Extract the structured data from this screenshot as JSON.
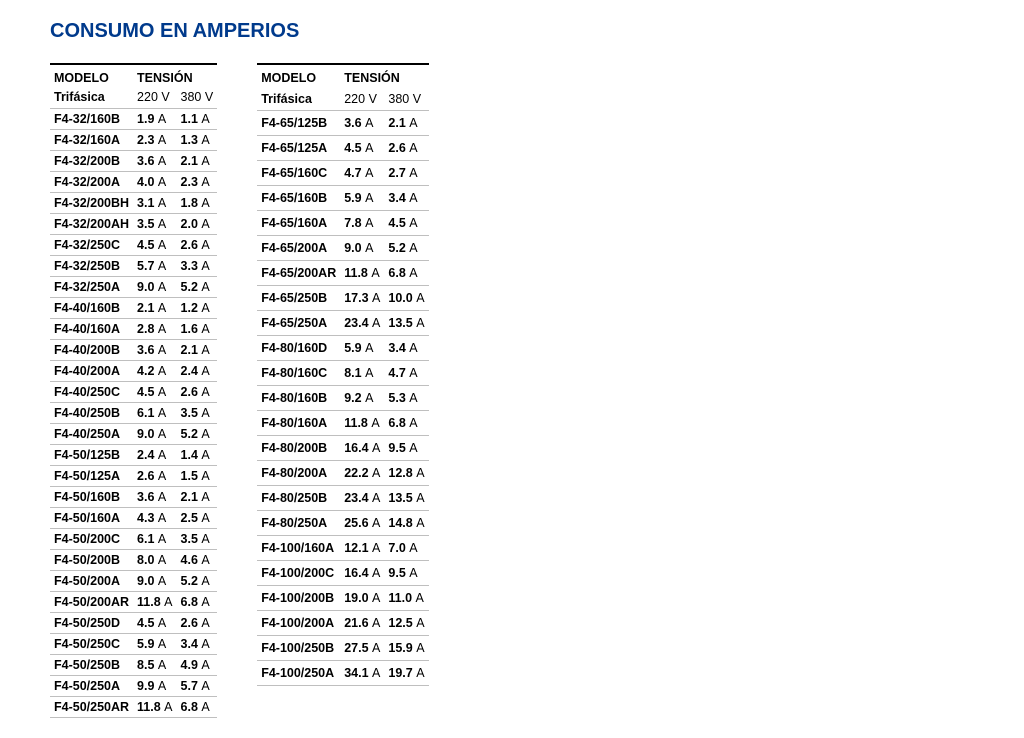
{
  "title": "CONSUMO EN AMPERIOS",
  "headers": {
    "modelo": "MODELO",
    "tension": "TENSIÓN",
    "trifasica": "Trifásica",
    "v220": "220 V",
    "v380": "380 V"
  },
  "unit": "A",
  "left": [
    {
      "m": "F4-32/160B",
      "a": "1.9",
      "b": "1.1"
    },
    {
      "m": "F4-32/160A",
      "a": "2.3",
      "b": "1.3"
    },
    {
      "m": "F4-32/200B",
      "a": "3.6",
      "b": "2.1"
    },
    {
      "m": "F4-32/200A",
      "a": "4.0",
      "b": "2.3"
    },
    {
      "m": "F4-32/200BH",
      "a": "3.1",
      "b": "1.8"
    },
    {
      "m": "F4-32/200AH",
      "a": "3.5",
      "b": "2.0"
    },
    {
      "m": "F4-32/250C",
      "a": "4.5",
      "b": "2.6"
    },
    {
      "m": "F4-32/250B",
      "a": "5.7",
      "b": "3.3"
    },
    {
      "m": "F4-32/250A",
      "a": "9.0",
      "b": "5.2"
    },
    {
      "m": "F4-40/160B",
      "a": "2.1",
      "b": "1.2"
    },
    {
      "m": "F4-40/160A",
      "a": "2.8",
      "b": "1.6"
    },
    {
      "m": "F4-40/200B",
      "a": "3.6",
      "b": "2.1"
    },
    {
      "m": "F4-40/200A",
      "a": "4.2",
      "b": "2.4"
    },
    {
      "m": "F4-40/250C",
      "a": "4.5",
      "b": "2.6"
    },
    {
      "m": "F4-40/250B",
      "a": "6.1",
      "b": "3.5"
    },
    {
      "m": "F4-40/250A",
      "a": "9.0",
      "b": "5.2"
    },
    {
      "m": "F4-50/125B",
      "a": "2.4",
      "b": "1.4"
    },
    {
      "m": "F4-50/125A",
      "a": "2.6",
      "b": "1.5"
    },
    {
      "m": "F4-50/160B",
      "a": "3.6",
      "b": "2.1"
    },
    {
      "m": "F4-50/160A",
      "a": "4.3",
      "b": "2.5"
    },
    {
      "m": "F4-50/200C",
      "a": "6.1",
      "b": "3.5"
    },
    {
      "m": "F4-50/200B",
      "a": "8.0",
      "b": "4.6"
    },
    {
      "m": "F4-50/200A",
      "a": "9.0",
      "b": "5.2"
    },
    {
      "m": "F4-50/200AR",
      "a": "11.8",
      "b": "6.8"
    },
    {
      "m": "F4-50/250D",
      "a": "4.5",
      "b": "2.6"
    },
    {
      "m": "F4-50/250C",
      "a": "5.9",
      "b": "3.4"
    },
    {
      "m": "F4-50/250B",
      "a": "8.5",
      "b": "4.9"
    },
    {
      "m": "F4-50/250A",
      "a": "9.9",
      "b": "5.7"
    },
    {
      "m": "F4-50/250AR",
      "a": "11.8",
      "b": "6.8"
    }
  ],
  "right": [
    {
      "m": "F4-65/125B",
      "a": "3.6",
      "b": "2.1"
    },
    {
      "m": "F4-65/125A",
      "a": "4.5",
      "b": "2.6"
    },
    {
      "m": "F4-65/160C",
      "a": "4.7",
      "b": "2.7"
    },
    {
      "m": "F4-65/160B",
      "a": "5.9",
      "b": "3.4"
    },
    {
      "m": "F4-65/160A",
      "a": "7.8",
      "b": "4.5"
    },
    {
      "m": "F4-65/200A",
      "a": "9.0",
      "b": "5.2"
    },
    {
      "m": "F4-65/200AR",
      "a": "11.8",
      "b": "6.8"
    },
    {
      "m": "F4-65/250B",
      "a": "17.3",
      "b": "10.0"
    },
    {
      "m": "F4-65/250A",
      "a": "23.4",
      "b": "13.5"
    },
    {
      "m": "F4-80/160D",
      "a": "5.9",
      "b": "3.4"
    },
    {
      "m": "F4-80/160C",
      "a": "8.1",
      "b": "4.7"
    },
    {
      "m": "F4-80/160B",
      "a": "9.2",
      "b": "5.3"
    },
    {
      "m": "F4-80/160A",
      "a": "11.8",
      "b": "6.8"
    },
    {
      "m": "F4-80/200B",
      "a": "16.4",
      "b": "9.5"
    },
    {
      "m": "F4-80/200A",
      "a": "22.2",
      "b": "12.8"
    },
    {
      "m": "F4-80/250B",
      "a": "23.4",
      "b": "13.5"
    },
    {
      "m": "F4-80/250A",
      "a": "25.6",
      "b": "14.8"
    },
    {
      "m": "F4-100/160A",
      "a": "12.1",
      "b": "7.0"
    },
    {
      "m": "F4-100/200C",
      "a": "16.4",
      "b": "9.5"
    },
    {
      "m": "F4-100/200B",
      "a": "19.0",
      "b": "11.0"
    },
    {
      "m": "F4-100/200A",
      "a": "21.6",
      "b": "12.5"
    },
    {
      "m": "F4-100/250B",
      "a": "27.5",
      "b": "15.9"
    },
    {
      "m": "F4-100/250A",
      "a": "34.1",
      "b": "19.7"
    }
  ]
}
